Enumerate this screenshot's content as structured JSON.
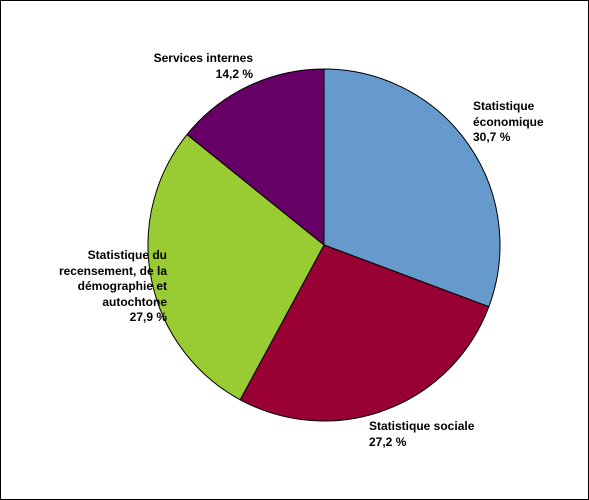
{
  "chart_data": {
    "type": "pie",
    "start_angle_deg": 0,
    "direction": "clockwise",
    "slices": [
      {
        "name_lines": [
          "Statistique",
          "économique"
        ],
        "value": 30.7,
        "value_label": "30,7 %",
        "color": "#6699cc"
      },
      {
        "name_lines": [
          "Statistique sociale"
        ],
        "value": 27.2,
        "value_label": "27,2 %",
        "color": "#990033"
      },
      {
        "name_lines": [
          "Statistique du",
          "recensement, de la",
          "démographie et",
          "autochtone"
        ],
        "value": 27.9,
        "value_label": "27,9 %",
        "color": "#99cc33"
      },
      {
        "name_lines": [
          "Services internes"
        ],
        "value": 14.2,
        "value_label": "14,2 %",
        "color": "#660066"
      }
    ]
  }
}
